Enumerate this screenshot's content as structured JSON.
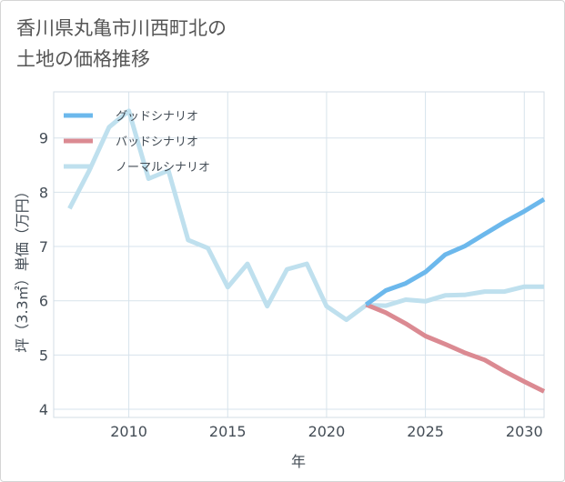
{
  "title": {
    "line1": "香川県丸亀市川西町北の",
    "line2": "土地の価格推移"
  },
  "colors": {
    "good": "#6cb8ec",
    "bad": "#db8a92",
    "normal": "#bfe0ee",
    "grid": "#d7e3ec",
    "axis": "#444d56"
  },
  "chart_data": {
    "type": "line",
    "title": "香川県丸亀市川西町北の土地の価格推移",
    "xlabel": "年",
    "ylabel": "坪（3.3㎡）単価（万円）",
    "xlim": [
      2006.2,
      2031
    ],
    "ylim": [
      3.85,
      9.85
    ],
    "grid": true,
    "legend_position": "top-left",
    "x_ticks": [
      2010,
      2015,
      2020,
      2025,
      2030
    ],
    "x_tick_labels": [
      "2010",
      "2015",
      "2020",
      "2025",
      "2030"
    ],
    "y_ticks": [
      4,
      5,
      6,
      7,
      8,
      9
    ],
    "y_tick_labels": [
      "4",
      "5",
      "6",
      "7",
      "8",
      "9"
    ],
    "series": [
      {
        "key": "good",
        "name": "グッドシナリオ",
        "x": [
          2022,
          2023,
          2024,
          2025,
          2026,
          2027,
          2028,
          2029,
          2030,
          2031
        ],
        "values": [
          5.93,
          6.19,
          6.32,
          6.53,
          6.85,
          7.01,
          7.23,
          7.45,
          7.65,
          7.87
        ]
      },
      {
        "key": "bad",
        "name": "バッドシナリオ",
        "x": [
          2022,
          2023,
          2024,
          2025,
          2026,
          2027,
          2028,
          2029,
          2030,
          2031
        ],
        "values": [
          5.93,
          5.78,
          5.58,
          5.35,
          5.2,
          5.04,
          4.91,
          4.7,
          4.51,
          4.33
        ]
      },
      {
        "key": "normal",
        "name": "ノーマルシナリオ",
        "x": [
          2007,
          2008,
          2009,
          2010,
          2011,
          2012,
          2013,
          2014,
          2015,
          2016,
          2017,
          2018,
          2019,
          2020,
          2021,
          2022,
          2023,
          2024,
          2025,
          2026,
          2027,
          2028,
          2029,
          2030,
          2031
        ],
        "values": [
          7.7,
          8.4,
          9.2,
          9.5,
          8.25,
          8.4,
          7.12,
          6.97,
          6.25,
          6.68,
          5.9,
          6.58,
          6.68,
          5.9,
          5.65,
          5.92,
          5.91,
          6.02,
          5.99,
          6.1,
          6.11,
          6.17,
          6.17,
          6.26,
          6.26
        ]
      }
    ]
  }
}
